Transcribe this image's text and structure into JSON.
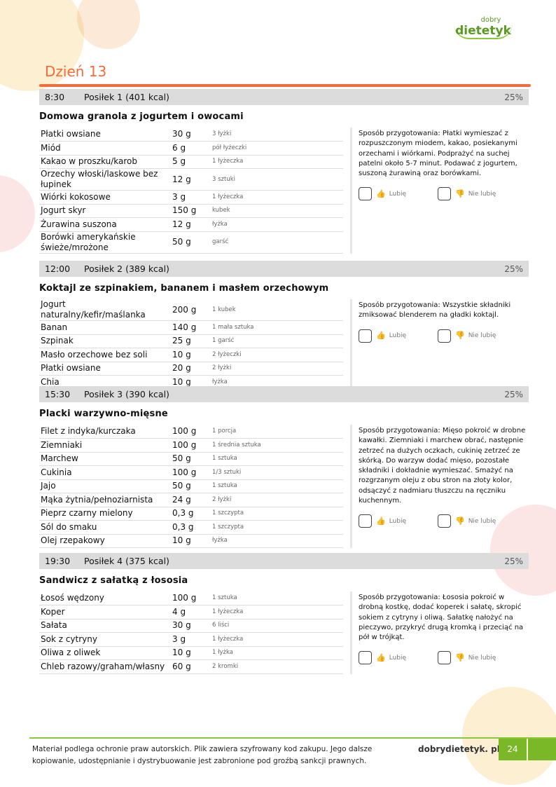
{
  "logo": {
    "small": "dobry",
    "big": "dietetyk"
  },
  "day_title": "Dzień 13",
  "prep_label": "Sposób przygotowania:",
  "like_label": "Lubię",
  "dislike_label": "Nie lubię",
  "meals": [
    {
      "time": "8:30",
      "name": "Posiłek 1 (401 kcal)",
      "percent": "25%",
      "title": "Domowa granola z jogurtem i owocami",
      "ingredients": [
        [
          "Płatki owsiane",
          "30 g",
          "3 łyżki"
        ],
        [
          "Miód",
          "6 g",
          "pół łyżeczki"
        ],
        [
          "Kakao w proszku/karob",
          "5 g",
          "1 łyżeczka"
        ],
        [
          "Orzechy włoski/laskowe bez łupinek",
          "12 g",
          "3 sztuki"
        ],
        [
          "Wiórki kokosowe",
          "3 g",
          "1 łyżeczka"
        ],
        [
          "Jogurt skyr",
          "150 g",
          "kubek"
        ],
        [
          "Żurawina suszona",
          "12 g",
          "łyżka"
        ],
        [
          "Borówki amerykańskie świeże/mrożone",
          "50 g",
          "garść"
        ]
      ],
      "prep": "Płatki wymieszać z rozpuszczonym miodem, kakao, posiekanymi orzechami i wiórkami. Podprażyć na suchej patelni około 5-7 minut. Podawać z jogurtem, suszoną żurawiną oraz borówkami."
    },
    {
      "time": "12:00",
      "name": "Posiłek 2 (389 kcal)",
      "percent": "25%",
      "title": "Koktajl ze szpinakiem, bananem i masłem orzechowym",
      "ingredients": [
        [
          "Jogurt naturalny/kefir/maślanka",
          "200 g",
          "1 kubek"
        ],
        [
          "Banan",
          "140 g",
          "1 mała sztuka"
        ],
        [
          "Szpinak",
          "25 g",
          "1 garść"
        ],
        [
          "Masło orzechowe bez soli",
          "10 g",
          "2 łyżeczki"
        ],
        [
          "Płatki owsiane",
          "20 g",
          "2 łyżki"
        ],
        [
          "Chia",
          "10 g",
          "łyżka"
        ]
      ],
      "prep": "Wszystkie składniki zmiksować blenderem na gładki koktajl."
    },
    {
      "time": "15:30",
      "name": "Posiłek 3 (390 kcal)",
      "percent": "25%",
      "title": "Placki warzywno-mięsne",
      "ingredients": [
        [
          "Filet z indyka/kurczaka",
          "100 g",
          "1 porcja"
        ],
        [
          "Ziemniaki",
          "100 g",
          "1 średnia sztuka"
        ],
        [
          "Marchew",
          "50 g",
          "1 sztuka"
        ],
        [
          "Cukinia",
          "100 g",
          "1/3 sztuki"
        ],
        [
          "Jajo",
          "50 g",
          "1 sztuka"
        ],
        [
          "Mąka żytnia/pełnoziarnista",
          "24 g",
          "2 łyżki"
        ],
        [
          "Pieprz czarny mielony",
          "0,3 g",
          "1 szczypta"
        ],
        [
          "Sól do smaku",
          "0,3 g",
          "1 szczypta"
        ],
        [
          "Olej rzepakowy",
          "10 g",
          "łyżka"
        ]
      ],
      "prep": "Mięso pokroić w drobne kawałki. Ziemniaki i marchew obrać, następnie zetrzeć na dużych oczkach, cukinię zetrzeć ze skórką. Do warzyw dodać mięso, pozostałe składniki i dokładnie wymieszać. Smażyć na rozgrzanym oleju z obu stron na złoty kolor, odsączyć z nadmiaru tłuszczu na ręczniku kuchennym."
    },
    {
      "time": "19:30",
      "name": "Posiłek 4 (375 kcal)",
      "percent": "25%",
      "title": "Sandwicz z sałatką z łososia",
      "ingredients": [
        [
          "Łosoś wędzony",
          "100 g",
          "1 sztuka"
        ],
        [
          "Koper",
          "4 g",
          "1 łyżeczka"
        ],
        [
          "Sałata",
          "30 g",
          "6 liści"
        ],
        [
          "Sok z cytryny",
          "3 g",
          "1 łyżeczka"
        ],
        [
          "Oliwa z oliwek",
          "10 g",
          "1 łyżka"
        ],
        [
          "Chleb razowy/graham/własny",
          "60 g",
          "2 kromki"
        ]
      ],
      "prep": "Łososia pokroić w drobną kostkę, dodać koperek i sałatę, skropić sokiem z cytryny i oliwą. Sałatkę nałożyć na pieczywo, przykryć drugą kromką i przeciąć na pół w trójkąt."
    }
  ],
  "footer": {
    "text_line1": "Materiał podlega ochronie praw autorskich. Plik zawiera szyfrowany kod zakupu. Jego dalsze",
    "text_line2": "kopiowanie, udostępnianie i dystrybuowanie jest zabronione pod groźbą sankcji prawnych.",
    "site": "dobrydietetyk. pl",
    "page": "24"
  },
  "colors": {
    "accent": "#f26b3a",
    "green": "#7ab828",
    "header_bg": "#dcdcdc"
  }
}
